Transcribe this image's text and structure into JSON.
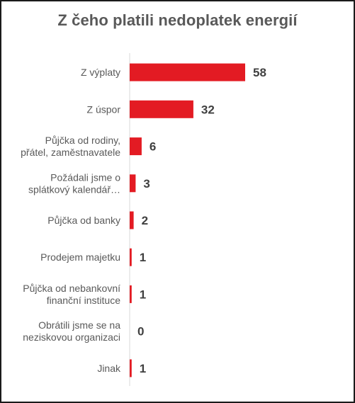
{
  "chart_data": {
    "type": "bar",
    "orientation": "horizontal",
    "title": "Z čeho platili nedoplatek energií",
    "categories": [
      "Z výplaty",
      "Z úspor",
      "Půjčka od rodiny, přátel, zaměstnavatele",
      "Požádali jsme o splátkový kalendář…",
      "Půjčka od banky",
      "Prodejem majetku",
      "Půjčka od nebankovní finanční instituce",
      "Obrátili jsme se na neziskovou organizaci",
      "Jinak"
    ],
    "category_lines": [
      [
        "Z výplaty"
      ],
      [
        "Z úspor"
      ],
      [
        "Půjčka od rodiny,",
        "přátel, zaměstnavatele"
      ],
      [
        "Požádali jsme o",
        "splátkový kalendář…"
      ],
      [
        "Půjčka od banky"
      ],
      [
        "Prodejem majetku"
      ],
      [
        "Půjčka od nebankovní",
        "finanční instituce"
      ],
      [
        "Obrátili jsme se na",
        "neziskovou organizaci"
      ],
      [
        "Jinak"
      ]
    ],
    "values": [
      58,
      32,
      6,
      3,
      2,
      1,
      1,
      0,
      1
    ],
    "xlabel": "",
    "ylabel": "",
    "xlim": [
      0,
      58
    ],
    "grid": false,
    "legend": "none",
    "bar_color": "#e31b23"
  }
}
